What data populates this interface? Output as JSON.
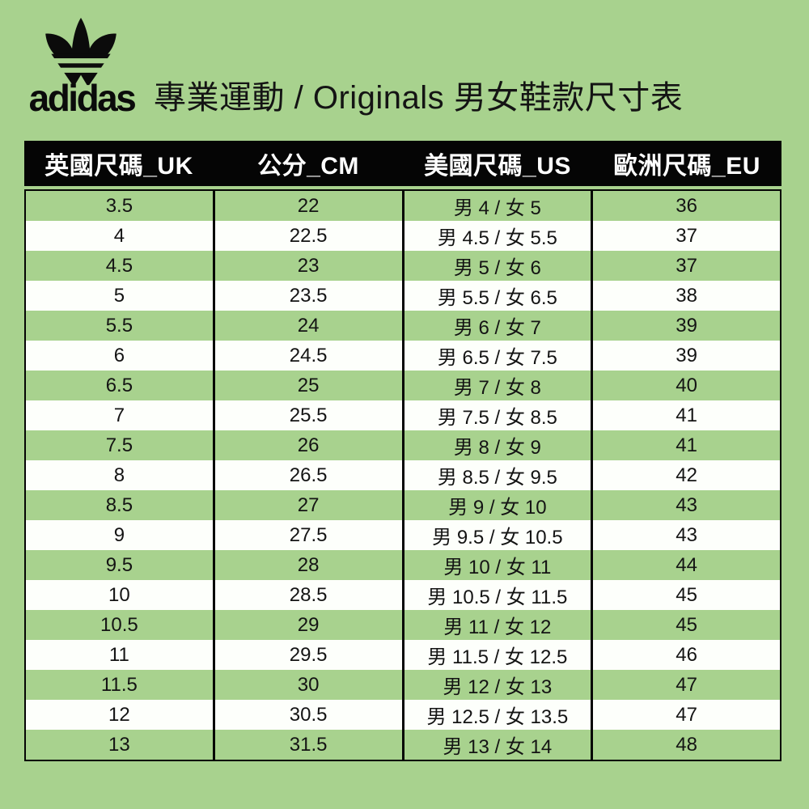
{
  "header": {
    "brand": "adidas",
    "logo_icon": "adidas-trefoil-logo",
    "title": "專業運動 / Originals 男女鞋款尺寸表"
  },
  "colors": {
    "background_green": "#a8d28e",
    "row_white": "#fdfffb",
    "table_header_bg": "#050505",
    "table_header_text": "#ffffff",
    "body_text": "#141414",
    "logo_black": "#0b0b0b"
  },
  "table": {
    "headers": [
      "英國尺碼_UK",
      "公分_CM",
      "美國尺碼_US",
      "歐洲尺碼_EU"
    ],
    "rows": [
      [
        "3.5",
        "22",
        "男 4 / 女 5",
        "36"
      ],
      [
        "4",
        "22.5",
        "男 4.5 / 女 5.5",
        "37"
      ],
      [
        "4.5",
        "23",
        "男 5 / 女 6",
        "37"
      ],
      [
        "5",
        "23.5",
        "男 5.5 / 女 6.5",
        "38"
      ],
      [
        "5.5",
        "24",
        "男 6 / 女 7",
        "39"
      ],
      [
        "6",
        "24.5",
        "男 6.5 / 女 7.5",
        "39"
      ],
      [
        "6.5",
        "25",
        "男 7 / 女 8",
        "40"
      ],
      [
        "7",
        "25.5",
        "男 7.5 / 女 8.5",
        "41"
      ],
      [
        "7.5",
        "26",
        "男 8 / 女 9",
        "41"
      ],
      [
        "8",
        "26.5",
        "男 8.5 / 女 9.5",
        "42"
      ],
      [
        "8.5",
        "27",
        "男 9 / 女 10",
        "43"
      ],
      [
        "9",
        "27.5",
        "男 9.5 / 女 10.5",
        "43"
      ],
      [
        "9.5",
        "28",
        "男 10 / 女 11",
        "44"
      ],
      [
        "10",
        "28.5",
        "男 10.5 / 女 11.5",
        "45"
      ],
      [
        "10.5",
        "29",
        "男 11 / 女 12",
        "45"
      ],
      [
        "11",
        "29.5",
        "男 11.5 / 女 12.5",
        "46"
      ],
      [
        "11.5",
        "30",
        "男 12 / 女 13",
        "47"
      ],
      [
        "12",
        "30.5",
        "男 12.5 / 女 13.5",
        "47"
      ],
      [
        "13",
        "31.5",
        "男 13 / 女 14",
        "48"
      ]
    ]
  }
}
